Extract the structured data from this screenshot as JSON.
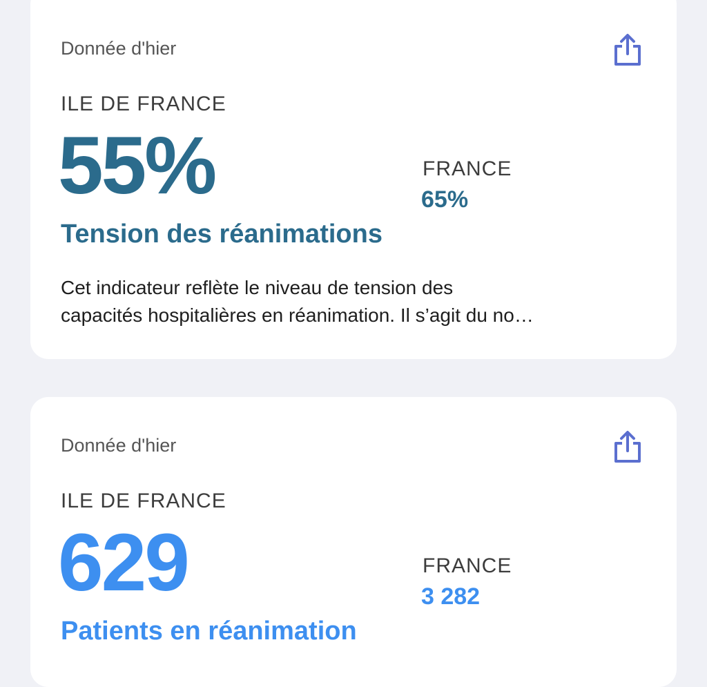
{
  "cards": [
    {
      "date_label": "Donnée d'hier",
      "region": "ILE DE FRANCE",
      "value": "55%",
      "france_label": "FRANCE",
      "france_value": "65%",
      "title": "Tension des réanimations",
      "color": "#2b6b8c",
      "description_lines": [
        "Cet indicateur reflète le niveau de tension des",
        "capacités hospitalières en réanimation. Il s’agit du no…"
      ]
    },
    {
      "date_label": "Donnée d'hier",
      "region": "ILE DE FRANCE",
      "value": "629",
      "france_label": "FRANCE",
      "france_value": "3 282",
      "title": "Patients en réanimation",
      "color": "#3d8ff0",
      "description_lines": []
    }
  ]
}
